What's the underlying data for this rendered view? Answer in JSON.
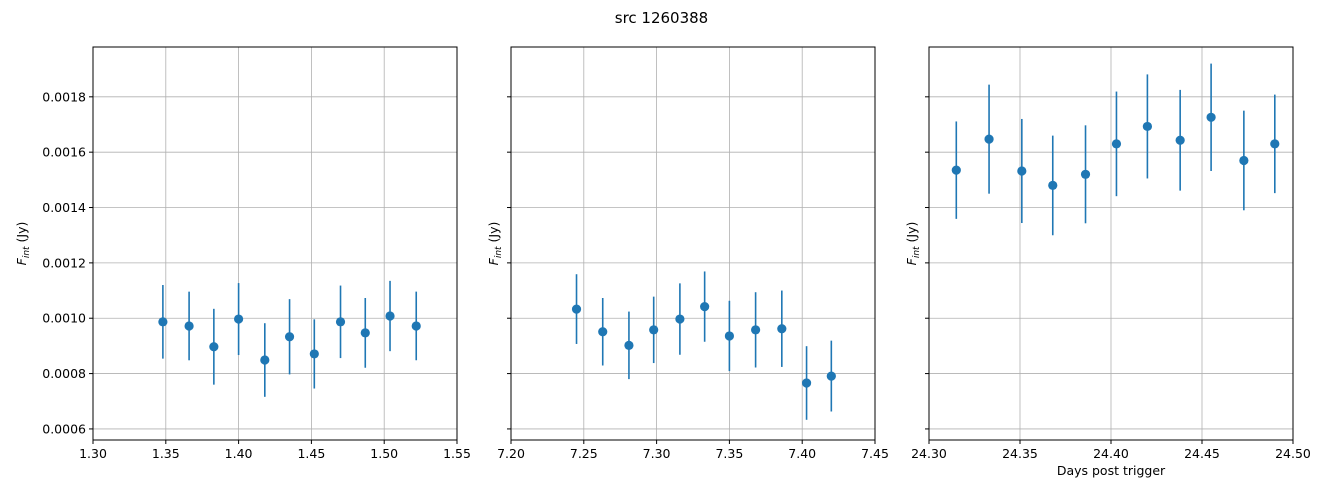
{
  "chart_data": {
    "type": "scatter",
    "title": "src 1260388",
    "color": "#1f77b4",
    "grid": true,
    "ylabel_base": "F",
    "ylabel_sub": "int",
    "ylabel_unit": " (Jy)",
    "ylim": [
      0.00056,
      0.00198
    ],
    "yticks": [
      0.0006,
      0.0008,
      0.001,
      0.0012,
      0.0014,
      0.0016,
      0.0018
    ],
    "ytick_labels": [
      "0.0006",
      "0.0008",
      "0.0010",
      "0.0012",
      "0.0014",
      "0.0016",
      "0.0018"
    ],
    "panels": [
      {
        "xlabel": "",
        "xlim": [
          1.3,
          1.55
        ],
        "xticks": [
          1.3,
          1.35,
          1.4,
          1.45,
          1.5,
          1.55
        ],
        "xtick_labels": [
          "1.30",
          "1.35",
          "1.40",
          "1.45",
          "1.50",
          "1.55"
        ],
        "x": [
          1.348,
          1.366,
          1.383,
          1.4,
          1.418,
          1.435,
          1.452,
          1.47,
          1.487,
          1.504,
          1.522
        ],
        "y": [
          0.000987,
          0.000972,
          0.000897,
          0.000997,
          0.000849,
          0.000933,
          0.000871,
          0.000987,
          0.000947,
          0.001008,
          0.000972
        ],
        "yerr": [
          0.000133,
          0.000124,
          0.000137,
          0.00013,
          0.000133,
          0.000136,
          0.000125,
          0.000131,
          0.000126,
          0.000127,
          0.000124
        ]
      },
      {
        "xlabel": "",
        "xlim": [
          7.2,
          7.45
        ],
        "xticks": [
          7.2,
          7.25,
          7.3,
          7.35,
          7.4,
          7.45
        ],
        "xtick_labels": [
          "7.20",
          "7.25",
          "7.30",
          "7.35",
          "7.40",
          "7.45"
        ],
        "x": [
          7.245,
          7.263,
          7.281,
          7.298,
          7.316,
          7.333,
          7.35,
          7.368,
          7.386,
          7.403,
          7.42
        ],
        "y": [
          0.001033,
          0.000951,
          0.000902,
          0.000958,
          0.000997,
          0.001042,
          0.000936,
          0.000958,
          0.000962,
          0.000766,
          0.000791
        ],
        "yerr": [
          0.000126,
          0.000122,
          0.000122,
          0.00012,
          0.000129,
          0.000127,
          0.000127,
          0.000136,
          0.000138,
          0.000133,
          0.000128
        ]
      },
      {
        "xlabel": "Days post trigger",
        "xlim": [
          24.3,
          24.5
        ],
        "xticks": [
          24.3,
          24.35,
          24.4,
          24.45,
          24.5
        ],
        "xtick_labels": [
          "24.30",
          "24.35",
          "24.40",
          "24.45",
          "24.50"
        ],
        "x": [
          24.315,
          24.333,
          24.351,
          24.368,
          24.386,
          24.403,
          24.42,
          24.438,
          24.455,
          24.473,
          24.49
        ],
        "y": [
          0.001535,
          0.001647,
          0.001532,
          0.00148,
          0.00152,
          0.00163,
          0.001693,
          0.001643,
          0.001726,
          0.00157,
          0.00163
        ],
        "yerr": [
          0.000176,
          0.000197,
          0.000188,
          0.00018,
          0.000177,
          0.000189,
          0.000188,
          0.000182,
          0.000194,
          0.00018,
          0.000178
        ]
      }
    ]
  }
}
